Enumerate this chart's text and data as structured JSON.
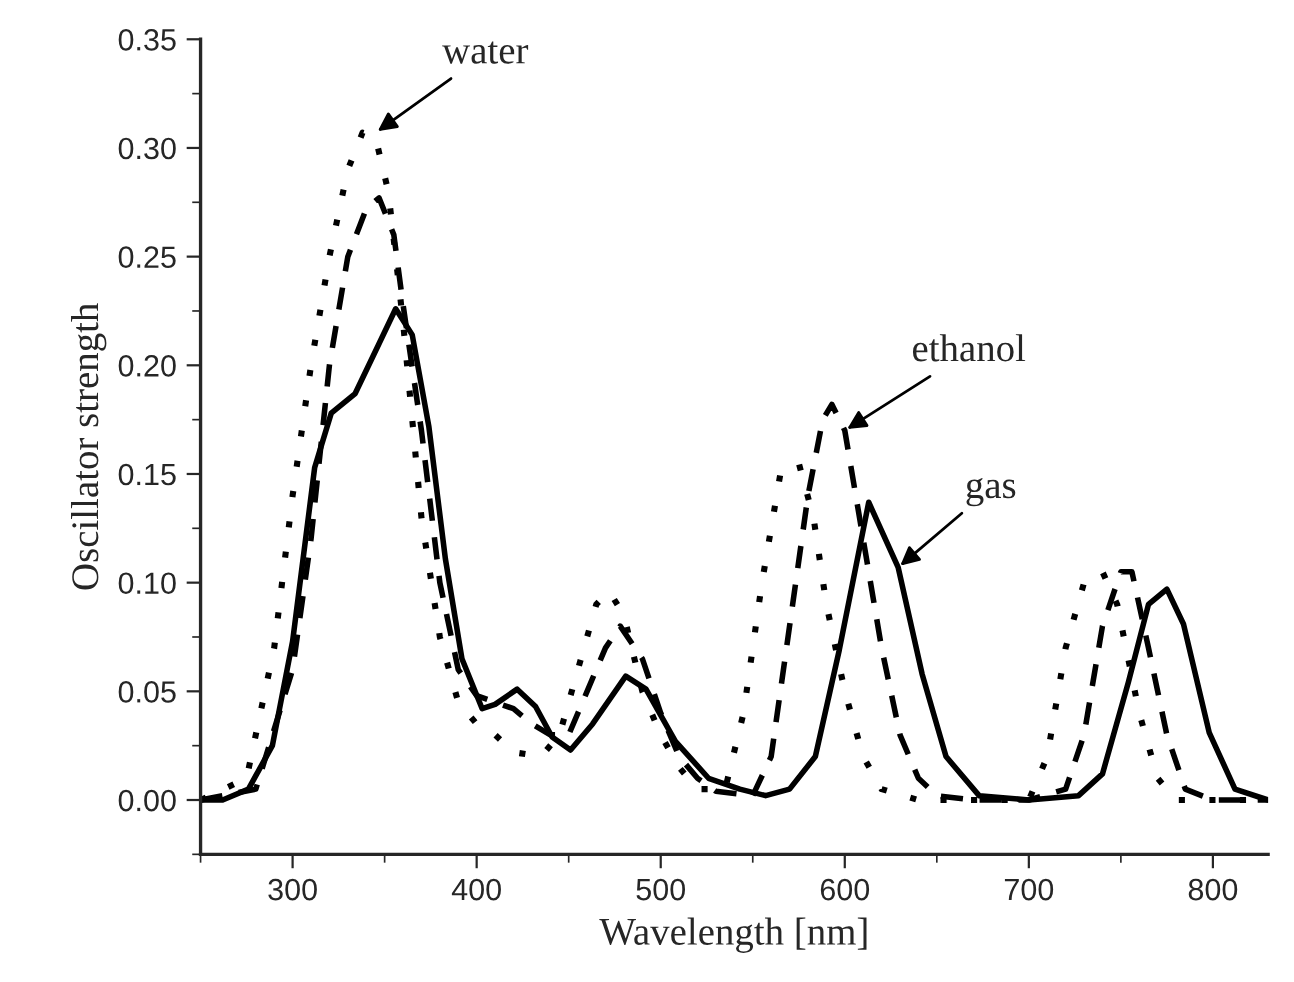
{
  "chart_data": {
    "type": "line",
    "xlabel": "Wavelength [nm]",
    "ylabel": "Oscillator strength",
    "xlim": [
      250,
      830
    ],
    "xticks": [
      300,
      400,
      500,
      600,
      700,
      800
    ],
    "ylim": [
      -0.025,
      0.35
    ],
    "yticks": [
      {
        "value": 0,
        "label": "0.00"
      },
      {
        "value": 0.05,
        "label": "0.05"
      },
      {
        "value": 0.1,
        "label": "0.10"
      },
      {
        "value": 0.15,
        "label": "0.15"
      },
      {
        "value": 0.2,
        "label": "0.20"
      },
      {
        "value": 0.25,
        "label": "0.25"
      },
      {
        "value": 0.3,
        "label": "0.30"
      },
      {
        "value": 0.35,
        "label": "0.35"
      }
    ],
    "grid": false,
    "legend": false,
    "marker": "none",
    "series": [
      {
        "color": "#000000",
        "line_style": "solid",
        "x": [
          250,
          262,
          276,
          289,
          300,
          312,
          321,
          334,
          347,
          356,
          365,
          374,
          383,
          392,
          403,
          410,
          422,
          432,
          441,
          451,
          463,
          481,
          492,
          508,
          526,
          543,
          557,
          570,
          584,
          597,
          613,
          629,
          642,
          655,
          673,
          700,
          727,
          740,
          754,
          765,
          775,
          784,
          798,
          812,
          830
        ],
        "values": [
          0,
          0,
          0.005,
          0.025,
          0.073,
          0.153,
          0.178,
          0.187,
          0.21,
          0.226,
          0.214,
          0.172,
          0.111,
          0.065,
          0.042,
          0.044,
          0.051,
          0.043,
          0.029,
          0.023,
          0.035,
          0.057,
          0.051,
          0.027,
          0.01,
          0.005,
          0.002,
          0.005,
          0.02,
          0.069,
          0.137,
          0.107,
          0.058,
          0.02,
          0.002,
          0,
          0.002,
          0.012,
          0.054,
          0.09,
          0.097,
          0.081,
          0.031,
          0.005,
          0
        ]
      },
      {
        "color": "#000000",
        "line_style": "dashed",
        "x": [
          250,
          280,
          300,
          310,
          320,
          330,
          340,
          347,
          355,
          360,
          370,
          380,
          390,
          400,
          410,
          420,
          430,
          440,
          450,
          460,
          470,
          478,
          490,
          500,
          510,
          520,
          530,
          550,
          560,
          570,
          580,
          588,
          593,
          600,
          610,
          620,
          630,
          640,
          650,
          670,
          700,
          720,
          730,
          740,
          750,
          756,
          765,
          775,
          785,
          800,
          830
        ],
        "values": [
          0,
          0.005,
          0.06,
          0.12,
          0.2,
          0.25,
          0.272,
          0.277,
          0.26,
          0.228,
          0.17,
          0.1,
          0.06,
          0.048,
          0.045,
          0.042,
          0.035,
          0.03,
          0.03,
          0.05,
          0.07,
          0.08,
          0.065,
          0.04,
          0.02,
          0.01,
          0.004,
          0.002,
          0.02,
          0.08,
          0.14,
          0.175,
          0.182,
          0.17,
          0.12,
          0.07,
          0.03,
          0.01,
          0.002,
          0,
          0,
          0.005,
          0.03,
          0.08,
          0.105,
          0.105,
          0.07,
          0.03,
          0.005,
          0,
          0
        ]
      },
      {
        "color": "#000000",
        "line_style": "dotted",
        "x": [
          250,
          275,
          290,
          300,
          310,
          320,
          330,
          338,
          345,
          352,
          360,
          370,
          380,
          390,
          400,
          410,
          420,
          435,
          445,
          455,
          465,
          472,
          480,
          490,
          500,
          510,
          520,
          535,
          545,
          555,
          565,
          575,
          583,
          590,
          600,
          610,
          620,
          640,
          700,
          710,
          720,
          730,
          740,
          748,
          760,
          770,
          780,
          830
        ],
        "values": [
          0,
          0.01,
          0.07,
          0.14,
          0.2,
          0.25,
          0.29,
          0.307,
          0.305,
          0.28,
          0.22,
          0.13,
          0.075,
          0.045,
          0.035,
          0.03,
          0.022,
          0.02,
          0.03,
          0.06,
          0.09,
          0.096,
          0.085,
          0.05,
          0.03,
          0.015,
          0.005,
          0.005,
          0.04,
          0.1,
          0.15,
          0.155,
          0.13,
          0.09,
          0.05,
          0.02,
          0.005,
          0,
          0,
          0.02,
          0.07,
          0.1,
          0.105,
          0.09,
          0.04,
          0.01,
          0,
          0
        ]
      }
    ],
    "annotations": [
      {
        "text": "water",
        "x": 345,
        "y": 0.307
      },
      {
        "text": "ethanol",
        "x": 600,
        "y": 0.17
      },
      {
        "text": "gas",
        "x": 629,
        "y": 0.107
      }
    ]
  }
}
